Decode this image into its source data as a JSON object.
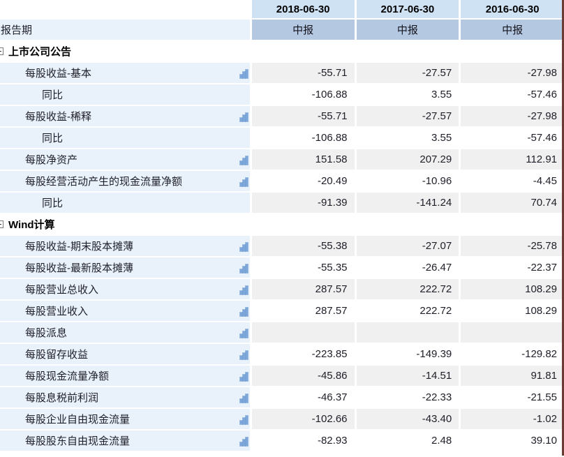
{
  "colors": {
    "header_bg": "#cfe2f4",
    "period_cell_bg": "#b5c8e2",
    "label_col_bg": "#e9f2fb",
    "zebra_row_bg": "#f0f0f0",
    "negative_value": "#fb1414",
    "positive_value": "#2424c8",
    "bar_icon_blue": "#7da7db"
  },
  "table": {
    "columns": [
      "2018-06-30",
      "2017-06-30",
      "2016-06-30"
    ],
    "rows": [
      {
        "type": "period",
        "label": "报告期",
        "icon": false,
        "zebra": false,
        "values": [
          "中报",
          "中报",
          "中报"
        ]
      },
      {
        "type": "section",
        "label": "上市公司公告",
        "icon": false,
        "zebra": false,
        "values": [
          "",
          "",
          ""
        ]
      },
      {
        "type": "metric",
        "label": "每股收益-基本",
        "icon": true,
        "zebra": true,
        "values": [
          "-55.71",
          "-27.57",
          "-27.98"
        ]
      },
      {
        "type": "sub",
        "label": "同比",
        "icon": false,
        "zebra": false,
        "values": [
          "-106.88",
          "3.55",
          "-57.46"
        ]
      },
      {
        "type": "metric",
        "label": "每股收益-稀释",
        "icon": true,
        "zebra": true,
        "values": [
          "-55.71",
          "-27.57",
          "-27.98"
        ]
      },
      {
        "type": "sub",
        "label": "同比",
        "icon": false,
        "zebra": false,
        "values": [
          "-106.88",
          "3.55",
          "-57.46"
        ]
      },
      {
        "type": "metric",
        "label": "每股净资产",
        "icon": true,
        "zebra": true,
        "values": [
          "151.58",
          "207.29",
          "112.91"
        ]
      },
      {
        "type": "metric",
        "label": "每股经营活动产生的现金流量净额",
        "icon": true,
        "zebra": false,
        "values": [
          "-20.49",
          "-10.96",
          "-4.45"
        ]
      },
      {
        "type": "sub",
        "label": "同比",
        "icon": false,
        "zebra": true,
        "values": [
          "-91.39",
          "-141.24",
          "70.74"
        ]
      },
      {
        "type": "section",
        "label": "Wind计算",
        "icon": false,
        "zebra": false,
        "values": [
          "",
          "",
          ""
        ]
      },
      {
        "type": "metric",
        "label": "每股收益-期末股本摊薄",
        "icon": true,
        "zebra": true,
        "values": [
          "-55.38",
          "-27.07",
          "-25.78"
        ]
      },
      {
        "type": "metric",
        "label": "每股收益-最新股本摊薄",
        "icon": true,
        "zebra": false,
        "values": [
          "-55.35",
          "-26.47",
          "-22.37"
        ]
      },
      {
        "type": "metric",
        "label": "每股营业总收入",
        "icon": true,
        "zebra": true,
        "values": [
          "287.57",
          "222.72",
          "108.29"
        ]
      },
      {
        "type": "metric",
        "label": "每股营业收入",
        "icon": true,
        "zebra": false,
        "values": [
          "287.57",
          "222.72",
          "108.29"
        ]
      },
      {
        "type": "metric",
        "label": "每股派息",
        "icon": true,
        "zebra": true,
        "values": [
          "",
          "",
          ""
        ]
      },
      {
        "type": "metric",
        "label": "每股留存收益",
        "icon": true,
        "zebra": false,
        "values": [
          "-223.85",
          "-149.39",
          "-129.82"
        ]
      },
      {
        "type": "metric",
        "label": "每股现金流量净额",
        "icon": true,
        "zebra": true,
        "values": [
          "-45.86",
          "-14.51",
          "91.81"
        ]
      },
      {
        "type": "metric",
        "label": "每股息税前利润",
        "icon": true,
        "zebra": false,
        "values": [
          "-46.37",
          "-22.33",
          "-21.55"
        ]
      },
      {
        "type": "metric",
        "label": "每股企业自由现金流量",
        "icon": true,
        "zebra": true,
        "values": [
          "-102.66",
          "-43.40",
          "-1.02"
        ]
      },
      {
        "type": "metric",
        "label": "每股股东自由现金流量",
        "icon": true,
        "zebra": false,
        "values": [
          "-82.93",
          "2.48",
          "39.10"
        ]
      }
    ]
  }
}
